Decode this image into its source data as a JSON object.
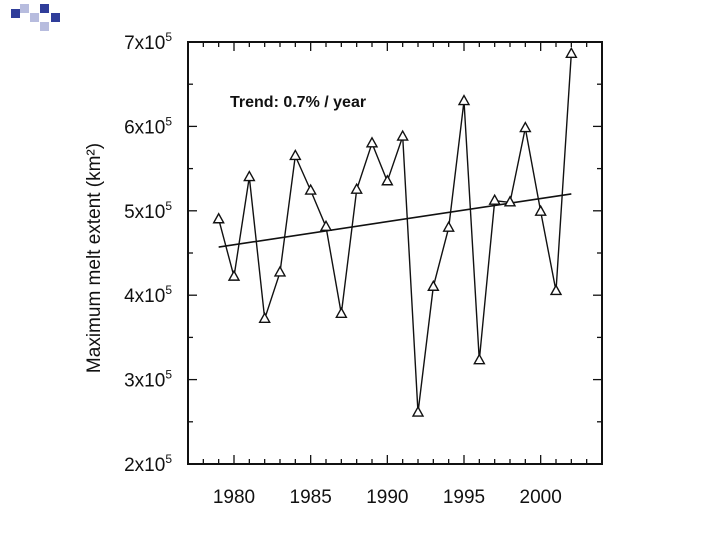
{
  "slide": {
    "accent_dark": "#2f3d9a",
    "accent_light": "#b7bcde"
  },
  "chart_data": {
    "type": "line",
    "title": "",
    "xlabel": "",
    "ylabel": "Maximum melt extent (km²)",
    "xlim": [
      1977,
      2004
    ],
    "ylim": [
      200000,
      700000
    ],
    "grid": false,
    "x_ticks": [
      1980,
      1985,
      1990,
      1995,
      2000
    ],
    "x_tick_labels": [
      "1980",
      "1985",
      "1990",
      "1995",
      "2000"
    ],
    "y_ticks": [
      200000,
      300000,
      400000,
      500000,
      600000,
      700000
    ],
    "y_tick_labels": [
      {
        "mantissa": "2x10",
        "exp": "5"
      },
      {
        "mantissa": "3x10",
        "exp": "5"
      },
      {
        "mantissa": "4x10",
        "exp": "5"
      },
      {
        "mantissa": "5x10",
        "exp": "5"
      },
      {
        "mantissa": "6x10",
        "exp": "5"
      },
      {
        "mantissa": "7x10",
        "exp": "5"
      }
    ],
    "series": [
      {
        "marker": "triangle",
        "color": "#111111",
        "x": [
          1979,
          1980,
          1981,
          1982,
          1983,
          1984,
          1985,
          1986,
          1987,
          1988,
          1989,
          1990,
          1991,
          1992,
          1993,
          1994,
          1995,
          1996,
          1997,
          1998,
          1999,
          2000,
          2001,
          2002
        ],
        "y": [
          490000,
          422000,
          540000,
          372000,
          427000,
          565000,
          524000,
          481000,
          378000,
          525000,
          580000,
          535000,
          588000,
          261000,
          410000,
          480000,
          630000,
          323000,
          512000,
          510000,
          598000,
          499000,
          405000,
          686000
        ]
      }
    ],
    "trend_line": {
      "x": [
        1979,
        2002
      ],
      "y": [
        457000,
        520000
      ]
    },
    "annotations": [
      {
        "text": "Trend: 0.7% / year"
      }
    ]
  }
}
